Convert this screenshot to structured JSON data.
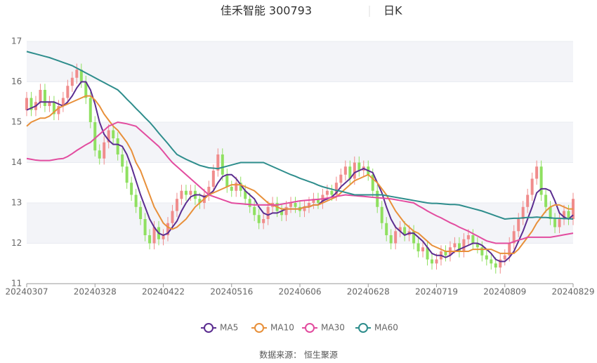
{
  "chart_data": {
    "type": "candlestick",
    "title": "佳禾智能 300793",
    "period": "日K",
    "source": "数据来源： 恒生聚源",
    "categories": [
      "20240307",
      null,
      null,
      null,
      null,
      null,
      null,
      null,
      null,
      null,
      null,
      null,
      null,
      null,
      null,
      "20240328",
      null,
      null,
      null,
      null,
      null,
      null,
      null,
      null,
      null,
      null,
      null,
      null,
      null,
      null,
      "20240422",
      null,
      null,
      null,
      null,
      null,
      null,
      null,
      null,
      null,
      null,
      null,
      null,
      null,
      null,
      "20240516",
      null,
      null,
      null,
      null,
      null,
      null,
      null,
      null,
      null,
      null,
      null,
      null,
      null,
      null,
      "20240606",
      null,
      null,
      null,
      null,
      null,
      null,
      null,
      null,
      null,
      null,
      null,
      null,
      null,
      null,
      "20240628",
      null,
      null,
      null,
      null,
      null,
      null,
      null,
      null,
      null,
      null,
      null,
      null,
      null,
      null,
      "20240719",
      null,
      null,
      null,
      null,
      null,
      null,
      null,
      null,
      null,
      null,
      null,
      null,
      null,
      null,
      "20240809",
      null,
      null,
      null,
      null,
      null,
      null,
      null,
      null,
      null,
      null,
      null,
      null,
      null,
      null,
      "20240829"
    ],
    "open": [
      15.3,
      15.6,
      15.3,
      15.5,
      15.8,
      15.4,
      15.5,
      15.2,
      15.4,
      15.6,
      15.9,
      16.1,
      16.3,
      16.0,
      15.6,
      15.0,
      14.3,
      14.1,
      14.5,
      14.8,
      14.6,
      14.2,
      13.9,
      13.5,
      13.2,
      12.9,
      12.6,
      12.2,
      12.0,
      12.4,
      12.1,
      12.2,
      12.5,
      12.8,
      13.1,
      13.3,
      13.2,
      13.3,
      13.1,
      13.0,
      13.2,
      13.4,
      13.8,
      14.2,
      13.7,
      13.4,
      13.3,
      13.5,
      13.3,
      13.1,
      12.9,
      12.7,
      12.5,
      12.6,
      12.9,
      13.0,
      12.8,
      12.7,
      12.9,
      13.0,
      12.9,
      12.8,
      12.9,
      13.0,
      13.1,
      13.0,
      13.2,
      13.3,
      13.2,
      13.5,
      13.7,
      13.9,
      13.6,
      14.0,
      13.8,
      13.9,
      13.7,
      13.3,
      12.9,
      12.5,
      12.2,
      12.0,
      12.3,
      12.4,
      12.2,
      12.3,
      12.0,
      11.8,
      11.9,
      11.6,
      11.5,
      11.6,
      11.8,
      11.7,
      11.9,
      12.0,
      11.8,
      12.1,
      12.2,
      12.0,
      11.9,
      11.7,
      11.6,
      11.5,
      11.4,
      11.6,
      11.7,
      12.0,
      12.3,
      12.6,
      12.9,
      13.2,
      13.6,
      13.9,
      13.2,
      12.9,
      12.6,
      12.4,
      12.6,
      12.8,
      12.6
    ],
    "close": [
      15.6,
      15.3,
      15.5,
      15.8,
      15.4,
      15.5,
      15.2,
      15.4,
      15.6,
      15.9,
      16.1,
      16.3,
      16.0,
      15.6,
      15.0,
      14.3,
      14.1,
      14.5,
      14.8,
      14.6,
      14.2,
      13.9,
      13.5,
      13.2,
      12.9,
      12.6,
      12.2,
      12.0,
      12.4,
      12.1,
      12.2,
      12.5,
      12.8,
      13.1,
      13.3,
      13.2,
      13.3,
      13.1,
      13.0,
      13.2,
      13.4,
      13.8,
      14.2,
      13.7,
      13.4,
      13.3,
      13.5,
      13.3,
      13.1,
      12.9,
      12.7,
      12.5,
      12.6,
      12.9,
      13.0,
      12.8,
      12.7,
      12.9,
      13.0,
      12.9,
      12.8,
      12.9,
      13.0,
      13.1,
      13.0,
      13.2,
      13.3,
      13.2,
      13.5,
      13.7,
      13.9,
      13.6,
      14.0,
      13.8,
      13.9,
      13.7,
      13.3,
      12.9,
      12.5,
      12.2,
      12.0,
      12.3,
      12.4,
      12.2,
      12.3,
      12.0,
      11.8,
      11.9,
      11.6,
      11.5,
      11.6,
      11.8,
      11.7,
      11.9,
      12.0,
      11.8,
      12.1,
      12.2,
      12.0,
      11.9,
      11.7,
      11.6,
      11.5,
      11.4,
      11.6,
      11.7,
      12.0,
      12.3,
      12.6,
      12.9,
      13.2,
      13.6,
      13.9,
      13.2,
      12.9,
      12.6,
      12.4,
      12.6,
      12.8,
      12.6,
      13.1
    ],
    "high": [
      15.75,
      15.75,
      15.65,
      15.95,
      15.95,
      15.65,
      15.65,
      15.55,
      15.75,
      16.05,
      16.25,
      16.45,
      16.45,
      16.15,
      15.75,
      15.15,
      14.45,
      14.65,
      14.95,
      14.95,
      14.75,
      14.35,
      14.05,
      13.65,
      13.35,
      13.05,
      12.75,
      12.35,
      12.55,
      12.55,
      12.35,
      12.65,
      12.95,
      13.25,
      13.45,
      13.45,
      13.45,
      13.45,
      13.25,
      13.35,
      13.55,
      13.95,
      14.35,
      14.35,
      13.85,
      13.55,
      13.65,
      13.65,
      13.45,
      13.25,
      13.05,
      12.85,
      12.75,
      13.05,
      13.15,
      13.15,
      12.95,
      13.05,
      13.15,
      13.15,
      13.05,
      13.05,
      13.15,
      13.25,
      13.25,
      13.35,
      13.45,
      13.45,
      13.65,
      13.85,
      14.05,
      14.05,
      14.15,
      14.15,
      14.05,
      14.05,
      13.85,
      13.45,
      13.05,
      12.65,
      12.35,
      12.45,
      12.55,
      12.55,
      12.45,
      12.45,
      12.15,
      12.05,
      12.05,
      11.75,
      11.75,
      11.95,
      11.95,
      12.05,
      12.15,
      12.15,
      12.25,
      12.35,
      12.35,
      12.15,
      12.05,
      11.85,
      11.75,
      11.65,
      11.75,
      11.85,
      12.15,
      12.45,
      12.75,
      13.05,
      13.35,
      13.75,
      14.05,
      14.05,
      13.35,
      13.05,
      12.75,
      12.75,
      12.95,
      12.95,
      13.25
    ],
    "low": [
      15.15,
      15.15,
      15.15,
      15.35,
      15.25,
      15.25,
      15.05,
      15.05,
      15.25,
      15.45,
      15.75,
      15.95,
      15.85,
      15.45,
      14.85,
      14.15,
      13.95,
      13.95,
      14.35,
      14.45,
      14.05,
      13.75,
      13.35,
      13.05,
      12.75,
      12.45,
      12.05,
      11.85,
      11.85,
      11.95,
      11.95,
      12.05,
      12.35,
      12.65,
      12.95,
      13.05,
      13.05,
      12.95,
      12.85,
      12.85,
      13.05,
      13.25,
      13.65,
      13.55,
      13.25,
      13.15,
      13.15,
      13.15,
      12.95,
      12.75,
      12.55,
      12.35,
      12.35,
      12.45,
      12.75,
      12.65,
      12.55,
      12.55,
      12.75,
      12.75,
      12.65,
      12.65,
      12.75,
      12.85,
      12.85,
      12.85,
      13.05,
      13.05,
      13.05,
      13.35,
      13.55,
      13.45,
      13.45,
      13.65,
      13.65,
      13.55,
      13.15,
      12.75,
      12.35,
      12.05,
      11.85,
      11.85,
      12.15,
      12.05,
      12.05,
      11.85,
      11.65,
      11.65,
      11.45,
      11.35,
      11.35,
      11.45,
      11.55,
      11.55,
      11.75,
      11.65,
      11.65,
      11.95,
      11.85,
      11.75,
      11.55,
      11.45,
      11.35,
      11.25,
      11.25,
      11.45,
      11.55,
      11.85,
      12.15,
      12.45,
      12.75,
      13.05,
      13.45,
      13.05,
      12.75,
      12.45,
      12.25,
      12.25,
      12.45,
      12.45,
      12.45
    ],
    "up_color": "#f08c8c",
    "down_color": "#8fe060",
    "series": [
      {
        "name": "MA5",
        "color": "#5b2d90",
        "values": [
          15.3,
          15.35,
          15.4,
          15.5,
          15.5,
          15.5,
          15.5,
          15.45,
          15.4,
          15.5,
          15.65,
          15.85,
          16.0,
          16.0,
          15.8,
          15.45,
          15.0,
          14.7,
          14.55,
          14.45,
          14.45,
          14.4,
          14.2,
          13.9,
          13.55,
          13.2,
          12.9,
          12.6,
          12.4,
          12.25,
          12.2,
          12.25,
          12.4,
          12.55,
          12.8,
          13.0,
          13.15,
          13.2,
          13.2,
          13.15,
          13.2,
          13.3,
          13.5,
          13.65,
          13.7,
          13.7,
          13.6,
          13.45,
          13.3,
          13.2,
          13.1,
          12.9,
          12.75,
          12.7,
          12.75,
          12.75,
          12.8,
          12.85,
          12.85,
          12.85,
          12.85,
          12.9,
          12.9,
          12.95,
          12.95,
          13.05,
          13.1,
          13.15,
          13.25,
          13.4,
          13.5,
          13.6,
          13.75,
          13.8,
          13.85,
          13.8,
          13.75,
          13.5,
          13.25,
          12.9,
          12.6,
          12.4,
          12.3,
          12.2,
          12.25,
          12.25,
          12.15,
          12.05,
          11.9,
          11.75,
          11.7,
          11.7,
          11.65,
          11.7,
          11.8,
          11.85,
          11.9,
          11.95,
          12.0,
          12.0,
          11.95,
          11.85,
          11.75,
          11.6,
          11.55,
          11.55,
          11.65,
          11.8,
          12.05,
          12.3,
          12.6,
          12.9,
          13.25,
          13.35,
          13.35,
          13.3,
          13.05,
          12.75,
          12.65,
          12.6,
          12.7
        ]
      },
      {
        "name": "MA10",
        "color": "#e8903a",
        "values": [
          14.9,
          15.0,
          15.05,
          15.1,
          15.1,
          15.15,
          15.25,
          15.35,
          15.4,
          15.45,
          15.5,
          15.55,
          15.6,
          15.65,
          15.65,
          15.55,
          15.4,
          15.2,
          15.05,
          14.9,
          14.8,
          14.65,
          14.5,
          14.3,
          14.0,
          13.8,
          13.5,
          13.2,
          12.9,
          12.7,
          12.5,
          12.4,
          12.35,
          12.4,
          12.5,
          12.6,
          12.75,
          12.9,
          13.0,
          13.1,
          13.2,
          13.25,
          13.3,
          13.35,
          13.4,
          13.45,
          13.45,
          13.45,
          13.4,
          13.35,
          13.3,
          13.2,
          13.1,
          13.0,
          12.95,
          12.9,
          12.85,
          12.85,
          12.85,
          12.85,
          12.85,
          12.9,
          12.9,
          12.95,
          12.95,
          13.0,
          13.05,
          13.1,
          13.15,
          13.25,
          13.35,
          13.45,
          13.55,
          13.6,
          13.65,
          13.7,
          13.6,
          13.5,
          13.35,
          13.2,
          13.0,
          12.8,
          12.65,
          12.5,
          12.4,
          12.3,
          12.25,
          12.15,
          12.05,
          11.95,
          11.9,
          11.85,
          11.8,
          11.8,
          11.8,
          11.8,
          11.8,
          11.8,
          11.85,
          11.85,
          11.85,
          11.85,
          11.85,
          11.8,
          11.75,
          11.75,
          11.75,
          11.75,
          11.85,
          12.0,
          12.15,
          12.3,
          12.5,
          12.65,
          12.8,
          12.9,
          12.95,
          12.95,
          12.9,
          12.85,
          12.85
        ]
      },
      {
        "name": "MA30",
        "color": "#e24c9f",
        "values": [
          14.1,
          14.08,
          14.06,
          14.05,
          14.05,
          14.05,
          14.07,
          14.09,
          14.1,
          14.15,
          14.22,
          14.3,
          14.37,
          14.44,
          14.5,
          14.6,
          14.7,
          14.8,
          14.9,
          14.95,
          15.0,
          14.98,
          14.96,
          14.93,
          14.9,
          14.8,
          14.7,
          14.6,
          14.5,
          14.4,
          14.27,
          14.13,
          14.0,
          13.9,
          13.8,
          13.7,
          13.6,
          13.5,
          13.4,
          13.3,
          13.2,
          13.16,
          13.12,
          13.08,
          13.04,
          13.0,
          12.99,
          12.98,
          12.97,
          12.96,
          12.95,
          12.95,
          12.95,
          12.95,
          12.95,
          12.95,
          12.97,
          12.99,
          13.01,
          13.03,
          13.05,
          13.06,
          13.07,
          13.08,
          13.09,
          13.1,
          13.12,
          13.14,
          13.16,
          13.18,
          13.2,
          13.19,
          13.18,
          13.17,
          13.16,
          13.15,
          13.14,
          13.13,
          13.12,
          13.11,
          13.1,
          13.08,
          13.06,
          13.04,
          13.02,
          13.0,
          12.93,
          12.87,
          12.8,
          12.74,
          12.68,
          12.63,
          12.57,
          12.51,
          12.46,
          12.4,
          12.35,
          12.3,
          12.24,
          12.18,
          12.12,
          12.06,
          12.03,
          12.0,
          12.0,
          12.0,
          12.0,
          12.04,
          12.08,
          12.11,
          12.15,
          12.15,
          12.15,
          12.15,
          12.15,
          12.15,
          12.17,
          12.19,
          12.21,
          12.23,
          12.25
        ]
      },
      {
        "name": "MA60",
        "color": "#2e8d8c",
        "values": [
          16.75,
          16.72,
          16.69,
          16.66,
          16.63,
          16.6,
          16.56,
          16.52,
          16.48,
          16.44,
          16.4,
          16.34,
          16.28,
          16.22,
          16.16,
          16.1,
          16.04,
          15.98,
          15.92,
          15.86,
          15.8,
          15.69,
          15.57,
          15.46,
          15.34,
          15.23,
          15.11,
          15.0,
          14.87,
          14.73,
          14.6,
          14.47,
          14.33,
          14.2,
          14.14,
          14.08,
          14.03,
          13.98,
          13.93,
          13.9,
          13.87,
          13.86,
          13.85,
          13.88,
          13.91,
          13.94,
          13.97,
          14.0,
          14.0,
          14.0,
          14.0,
          14.0,
          14.0,
          13.95,
          13.9,
          13.85,
          13.8,
          13.75,
          13.7,
          13.66,
          13.61,
          13.57,
          13.53,
          13.49,
          13.44,
          13.4,
          13.37,
          13.34,
          13.31,
          13.29,
          13.26,
          13.23,
          13.2,
          13.2,
          13.2,
          13.2,
          13.2,
          13.2,
          13.2,
          13.18,
          13.16,
          13.14,
          13.12,
          13.1,
          13.08,
          13.06,
          13.04,
          13.02,
          13.0,
          12.99,
          12.99,
          12.98,
          12.97,
          12.96,
          12.96,
          12.95,
          12.92,
          12.89,
          12.86,
          12.83,
          12.8,
          12.76,
          12.72,
          12.68,
          12.64,
          12.6,
          12.61,
          12.62,
          12.62,
          12.63,
          12.64,
          12.64,
          12.65,
          12.64,
          12.64,
          12.63,
          12.62,
          12.62,
          12.61,
          12.61,
          12.6
        ]
      }
    ],
    "ylim": [
      11,
      17
    ],
    "yticks": [
      11,
      12,
      13,
      14,
      15,
      16,
      17
    ],
    "grid": true
  }
}
